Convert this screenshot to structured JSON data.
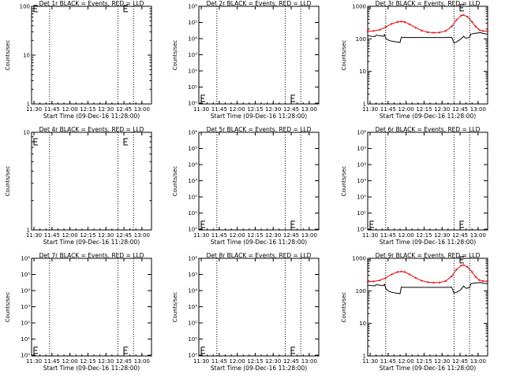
{
  "common": {
    "xlabel": "Start Time (09-Dec-16 11:28:00)",
    "xticks": [
      "11:30",
      "11:45",
      "12:00",
      "12:15",
      "12:30",
      "12:45",
      "13:00"
    ],
    "xtick_minutes": [
      2,
      17,
      32,
      47,
      62,
      77,
      92
    ],
    "xrange_minutes": [
      0,
      100
    ],
    "vlines_minutes": [
      15,
      72,
      85
    ],
    "colors": {
      "events": "#000000",
      "lld": "#ff0000",
      "axis": "#000000"
    }
  },
  "chart_data": [
    {
      "type": "line",
      "title": "Det 1r BLACK = Events, RED = LLD",
      "ylabel": "Counts/sec",
      "scale": "log",
      "ylim": [
        1,
        100
      ],
      "yticks": [
        {
          "v": 1,
          "label": "1"
        },
        {
          "v": 10,
          "label": "10"
        },
        {
          "v": 100,
          "label": "100"
        }
      ],
      "markers": [
        {
          "x": 0,
          "y": 90
        },
        {
          "x": 77,
          "y": 90
        }
      ],
      "series": []
    },
    {
      "type": "line",
      "title": "Det 2r BLACK = Events, RED = LLD",
      "ylabel": "Counts/sec",
      "scale": "log",
      "ylim": [
        0.9,
        1000000
      ],
      "yticks": [
        {
          "v": 1,
          "label": "10⁰"
        },
        {
          "v": 10,
          "label": "10¹"
        },
        {
          "v": 100,
          "label": "10²"
        },
        {
          "v": 1000,
          "label": "10³"
        },
        {
          "v": 10000,
          "label": "10⁴"
        },
        {
          "v": 100000,
          "label": "10⁵"
        },
        {
          "v": 1000000,
          "label": "10⁶"
        }
      ],
      "markers": [
        {
          "x": 0,
          "y": 2
        },
        {
          "x": 77,
          "y": 2
        }
      ],
      "series": []
    },
    {
      "type": "line",
      "title": "Det 3r BLACK = Events, RED = LLD",
      "ylabel": "Counts/sec",
      "scale": "log",
      "ylim": [
        1,
        1000
      ],
      "yticks": [
        {
          "v": 1,
          "label": "1"
        },
        {
          "v": 10,
          "label": "10"
        },
        {
          "v": 100,
          "label": "100"
        },
        {
          "v": 1000,
          "label": "1000"
        }
      ],
      "markers": [
        {
          "x": 77,
          "y": 900
        }
      ],
      "series": [
        {
          "key": "lld",
          "points": [
            [
              0,
              170
            ],
            [
              5,
              175
            ],
            [
              10,
              190
            ],
            [
              15,
              230
            ],
            [
              20,
              290
            ],
            [
              25,
              330
            ],
            [
              28,
              340
            ],
            [
              31,
              330
            ],
            [
              35,
              280
            ],
            [
              40,
              220
            ],
            [
              45,
              180
            ],
            [
              50,
              160
            ],
            [
              55,
              155
            ],
            [
              60,
              158
            ],
            [
              65,
              175
            ],
            [
              70,
              240
            ],
            [
              74,
              380
            ],
            [
              78,
              520
            ],
            [
              80,
              540
            ],
            [
              83,
              480
            ],
            [
              87,
              330
            ],
            [
              90,
              240
            ],
            [
              93,
              190
            ],
            [
              96,
              175
            ],
            [
              100,
              170
            ]
          ]
        },
        {
          "key": "events",
          "points": [
            [
              0,
              125
            ],
            [
              3,
              120
            ],
            [
              6,
              118
            ],
            [
              7,
              130
            ],
            [
              10,
              125
            ],
            [
              13,
              120
            ],
            [
              14,
              135
            ],
            [
              15,
              105
            ],
            [
              17,
              92
            ],
            [
              20,
              85
            ],
            [
              24,
              80
            ],
            [
              27,
              78
            ],
            [
              28,
              112
            ],
            [
              32,
              110
            ],
            [
              40,
              110
            ],
            [
              50,
              110
            ],
            [
              60,
              110
            ],
            [
              66,
              110
            ],
            [
              70,
              112
            ],
            [
              72,
              75
            ],
            [
              74,
              80
            ],
            [
              77,
              95
            ],
            [
              79,
              110
            ],
            [
              80,
              120
            ],
            [
              82,
              105
            ],
            [
              85,
              110
            ],
            [
              86,
              140
            ],
            [
              90,
              150
            ],
            [
              94,
              155
            ],
            [
              97,
              145
            ],
            [
              100,
              140
            ]
          ]
        }
      ]
    },
    {
      "type": "line",
      "title": "Det 4r BLACK = Events, RED = LLD",
      "ylabel": "Counts/sec",
      "scale": "log",
      "ylim": [
        1,
        10
      ],
      "yticks": [
        {
          "v": 1,
          "label": "1"
        },
        {
          "v": 10,
          "label": "10"
        }
      ],
      "markers": [
        {
          "x": 0,
          "y": 8
        },
        {
          "x": 77,
          "y": 8
        }
      ],
      "series": []
    },
    {
      "type": "line",
      "title": "Det 5r BLACK = Events, RED = LLD",
      "ylabel": "Counts/sec",
      "scale": "log",
      "ylim": [
        0.9,
        1000000
      ],
      "yticks": [
        {
          "v": 1,
          "label": "10⁰"
        },
        {
          "v": 10,
          "label": "10¹"
        },
        {
          "v": 100,
          "label": "10²"
        },
        {
          "v": 1000,
          "label": "10³"
        },
        {
          "v": 10000,
          "label": "10⁴"
        },
        {
          "v": 100000,
          "label": "10⁵"
        },
        {
          "v": 1000000,
          "label": "10⁶"
        }
      ],
      "markers": [
        {
          "x": 0,
          "y": 2
        },
        {
          "x": 77,
          "y": 2
        }
      ],
      "series": []
    },
    {
      "type": "line",
      "title": "Det 6r BLACK = Events, RED = LLD",
      "ylabel": "Counts/sec",
      "scale": "log",
      "ylim": [
        0.9,
        1000000
      ],
      "yticks": [
        {
          "v": 1,
          "label": "10⁰"
        },
        {
          "v": 10,
          "label": "10¹"
        },
        {
          "v": 100,
          "label": "10²"
        },
        {
          "v": 1000,
          "label": "10³"
        },
        {
          "v": 10000,
          "label": "10⁴"
        },
        {
          "v": 100000,
          "label": "10⁵"
        },
        {
          "v": 1000000,
          "label": "10⁶"
        }
      ],
      "markers": [
        {
          "x": 0,
          "y": 2
        },
        {
          "x": 77,
          "y": 2
        }
      ],
      "series": []
    },
    {
      "type": "line",
      "title": "Det 7r BLACK = Events, RED = LLD",
      "ylabel": "Counts/sec",
      "scale": "log",
      "ylim": [
        0.9,
        1000000
      ],
      "yticks": [
        {
          "v": 1,
          "label": "10⁰"
        },
        {
          "v": 10,
          "label": "10¹"
        },
        {
          "v": 100,
          "label": "10²"
        },
        {
          "v": 1000,
          "label": "10³"
        },
        {
          "v": 10000,
          "label": "10⁴"
        },
        {
          "v": 100000,
          "label": "10⁵"
        },
        {
          "v": 1000000,
          "label": "10⁶"
        }
      ],
      "markers": [
        {
          "x": 0,
          "y": 2
        },
        {
          "x": 77,
          "y": 2
        }
      ],
      "series": []
    },
    {
      "type": "line",
      "title": "Det 8r BLACK = Events, RED = LLD",
      "ylabel": "Counts/sec",
      "scale": "log",
      "ylim": [
        0.9,
        1000000
      ],
      "yticks": [
        {
          "v": 1,
          "label": "10⁰"
        },
        {
          "v": 10,
          "label": "10¹"
        },
        {
          "v": 100,
          "label": "10²"
        },
        {
          "v": 1000,
          "label": "10³"
        },
        {
          "v": 10000,
          "label": "10⁴"
        },
        {
          "v": 100000,
          "label": "10⁵"
        },
        {
          "v": 1000000,
          "label": "10⁶"
        }
      ],
      "markers": [
        {
          "x": 0,
          "y": 2
        },
        {
          "x": 77,
          "y": 2
        }
      ],
      "series": []
    },
    {
      "type": "line",
      "title": "Det 9r BLACK = Events, RED = LLD",
      "ylabel": "Counts/sec",
      "scale": "log",
      "ylim": [
        1,
        1000
      ],
      "yticks": [
        {
          "v": 1,
          "label": "1"
        },
        {
          "v": 10,
          "label": "10"
        },
        {
          "v": 100,
          "label": "100"
        },
        {
          "v": 1000,
          "label": "1000"
        }
      ],
      "markers": [
        {
          "x": 77,
          "y": 900
        }
      ],
      "series": [
        {
          "key": "lld",
          "points": [
            [
              0,
              190
            ],
            [
              5,
              195
            ],
            [
              10,
              210
            ],
            [
              15,
              250
            ],
            [
              20,
              320
            ],
            [
              25,
              380
            ],
            [
              28,
              395
            ],
            [
              31,
              380
            ],
            [
              35,
              320
            ],
            [
              40,
              250
            ],
            [
              45,
              205
            ],
            [
              50,
              185
            ],
            [
              55,
              178
            ],
            [
              60,
              180
            ],
            [
              65,
              200
            ],
            [
              70,
              280
            ],
            [
              74,
              450
            ],
            [
              78,
              600
            ],
            [
              80,
              620
            ],
            [
              83,
              550
            ],
            [
              87,
              380
            ],
            [
              90,
              270
            ],
            [
              93,
              215
            ],
            [
              96,
              200
            ],
            [
              100,
              195
            ]
          ]
        },
        {
          "key": "events",
          "points": [
            [
              0,
              150
            ],
            [
              3,
              145
            ],
            [
              6,
              142
            ],
            [
              7,
              155
            ],
            [
              10,
              150
            ],
            [
              13,
              145
            ],
            [
              14,
              160
            ],
            [
              15,
              120
            ],
            [
              17,
              100
            ],
            [
              20,
              90
            ],
            [
              24,
              85
            ],
            [
              27,
              82
            ],
            [
              28,
              130
            ],
            [
              32,
              128
            ],
            [
              40,
              128
            ],
            [
              50,
              128
            ],
            [
              60,
              128
            ],
            [
              66,
              128
            ],
            [
              70,
              130
            ],
            [
              72,
              85
            ],
            [
              74,
              90
            ],
            [
              77,
              105
            ],
            [
              79,
              125
            ],
            [
              80,
              140
            ],
            [
              82,
              120
            ],
            [
              85,
              125
            ],
            [
              86,
              165
            ],
            [
              90,
              175
            ],
            [
              94,
              180
            ],
            [
              97,
              170
            ],
            [
              100,
              165
            ]
          ]
        }
      ]
    }
  ]
}
